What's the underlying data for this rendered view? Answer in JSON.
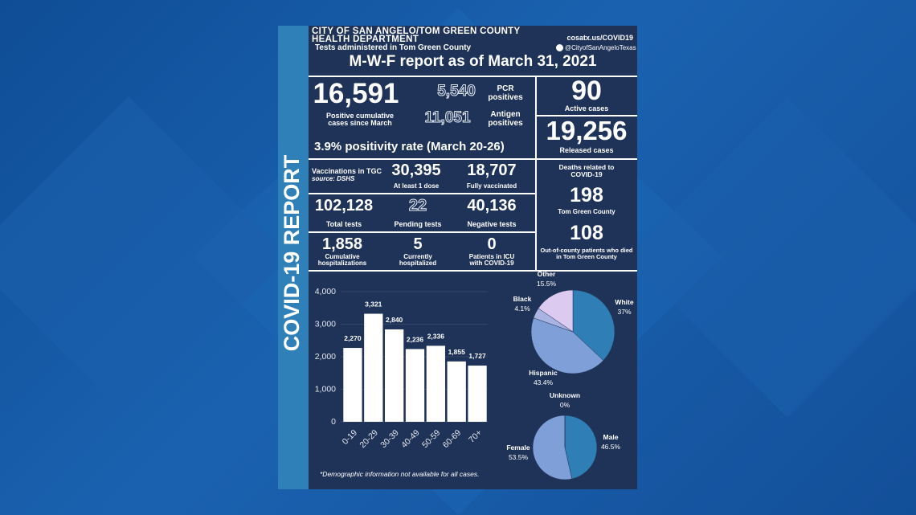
{
  "header": {
    "org_lines": [
      "CITY OF SAN ANGELO/TOM GREEN COUNTY",
      "HEALTH DEPARTMENT"
    ],
    "subtitle": "Tests administered in Tom Green County",
    "website": "cosatx.us/COVID19",
    "social": "@CityofSanAngeloTexas",
    "title": "M-W-F report as of March 31, 2021"
  },
  "side_label": "COVID-19 REPORT",
  "cases": {
    "positive": {
      "value": "16,591",
      "label": "Positive cumulative cases since March"
    },
    "pcr": {
      "value": "5,540",
      "label": "PCR positives"
    },
    "antigen": {
      "value": "11,051",
      "label": "Antigen positives"
    },
    "positivity": "3.9% positivity rate (March 20-26)",
    "active": {
      "value": "90",
      "label": "Active cases"
    },
    "released": {
      "value": "19,256",
      "label": "Released cases"
    }
  },
  "vaccinations": {
    "label": "Vaccinations in TGC",
    "source": "source: DSHS",
    "dose1": {
      "value": "30,395",
      "label": "At least 1 dose"
    },
    "full": {
      "value": "18,707",
      "label": "Fully vaccinated"
    }
  },
  "tests": {
    "total": {
      "value": "102,128",
      "label": "Total tests"
    },
    "pending": {
      "value": "22",
      "label": "Pending tests"
    },
    "negative": {
      "value": "40,136",
      "label": "Negative tests"
    }
  },
  "hospital": {
    "cumulative": {
      "value": "1,858",
      "label": "Cumulative hospitalizations"
    },
    "current": {
      "value": "5",
      "label": "Currently hospitalized"
    },
    "icu": {
      "value": "0",
      "label": "Patients in ICU with COVID-19"
    }
  },
  "deaths": {
    "label": "Deaths related to COVID-19",
    "county": {
      "value": "198",
      "label": "Tom Green County"
    },
    "out_of_county": {
      "value": "108",
      "label": "Out-of-county patients who died in Tom Green County"
    }
  },
  "footnote": "*Demographic information not available for all cases.",
  "chart_data": [
    {
      "type": "bar",
      "categories": [
        "0-19",
        "20-29",
        "30-39",
        "40-49",
        "50-59",
        "60-69",
        "70+"
      ],
      "values": [
        2270,
        3321,
        2840,
        2236,
        2336,
        1855,
        1727
      ],
      "value_labels": [
        "2,270",
        "3,321",
        "2,840",
        "2,236",
        "2,336",
        "1,855",
        "1,727"
      ],
      "color": "#ffffff",
      "ylim": [
        0,
        4000
      ],
      "yticks": [
        0,
        {
          "value": 1000,
          "label": "1,000"
        },
        {
          "value": 2000,
          "label": "2,000"
        },
        {
          "value": 3000,
          "label": "3,000"
        },
        {
          "value": 4000,
          "label": "4,000"
        }
      ],
      "grid": true
    },
    {
      "type": "pie",
      "categories": [
        "White",
        "Hispanic",
        "Black",
        "Other"
      ],
      "values": [
        37,
        43.4,
        4.1,
        15.5
      ],
      "value_labels": [
        "37%",
        "43.4%",
        "4.1%",
        "15.5%"
      ],
      "colors": [
        "#2f7fb6",
        "#7e9fd8",
        "#a9b4e2",
        "#dccaf0"
      ]
    },
    {
      "type": "pie",
      "categories": [
        "Male",
        "Female",
        "Unknown"
      ],
      "values": [
        46.5,
        53.5,
        0
      ],
      "value_labels": [
        "46.5%",
        "53.5%",
        "0%"
      ],
      "colors": [
        "#2f7fb6",
        "#7e9fd8",
        "#a9b4e2"
      ]
    }
  ]
}
